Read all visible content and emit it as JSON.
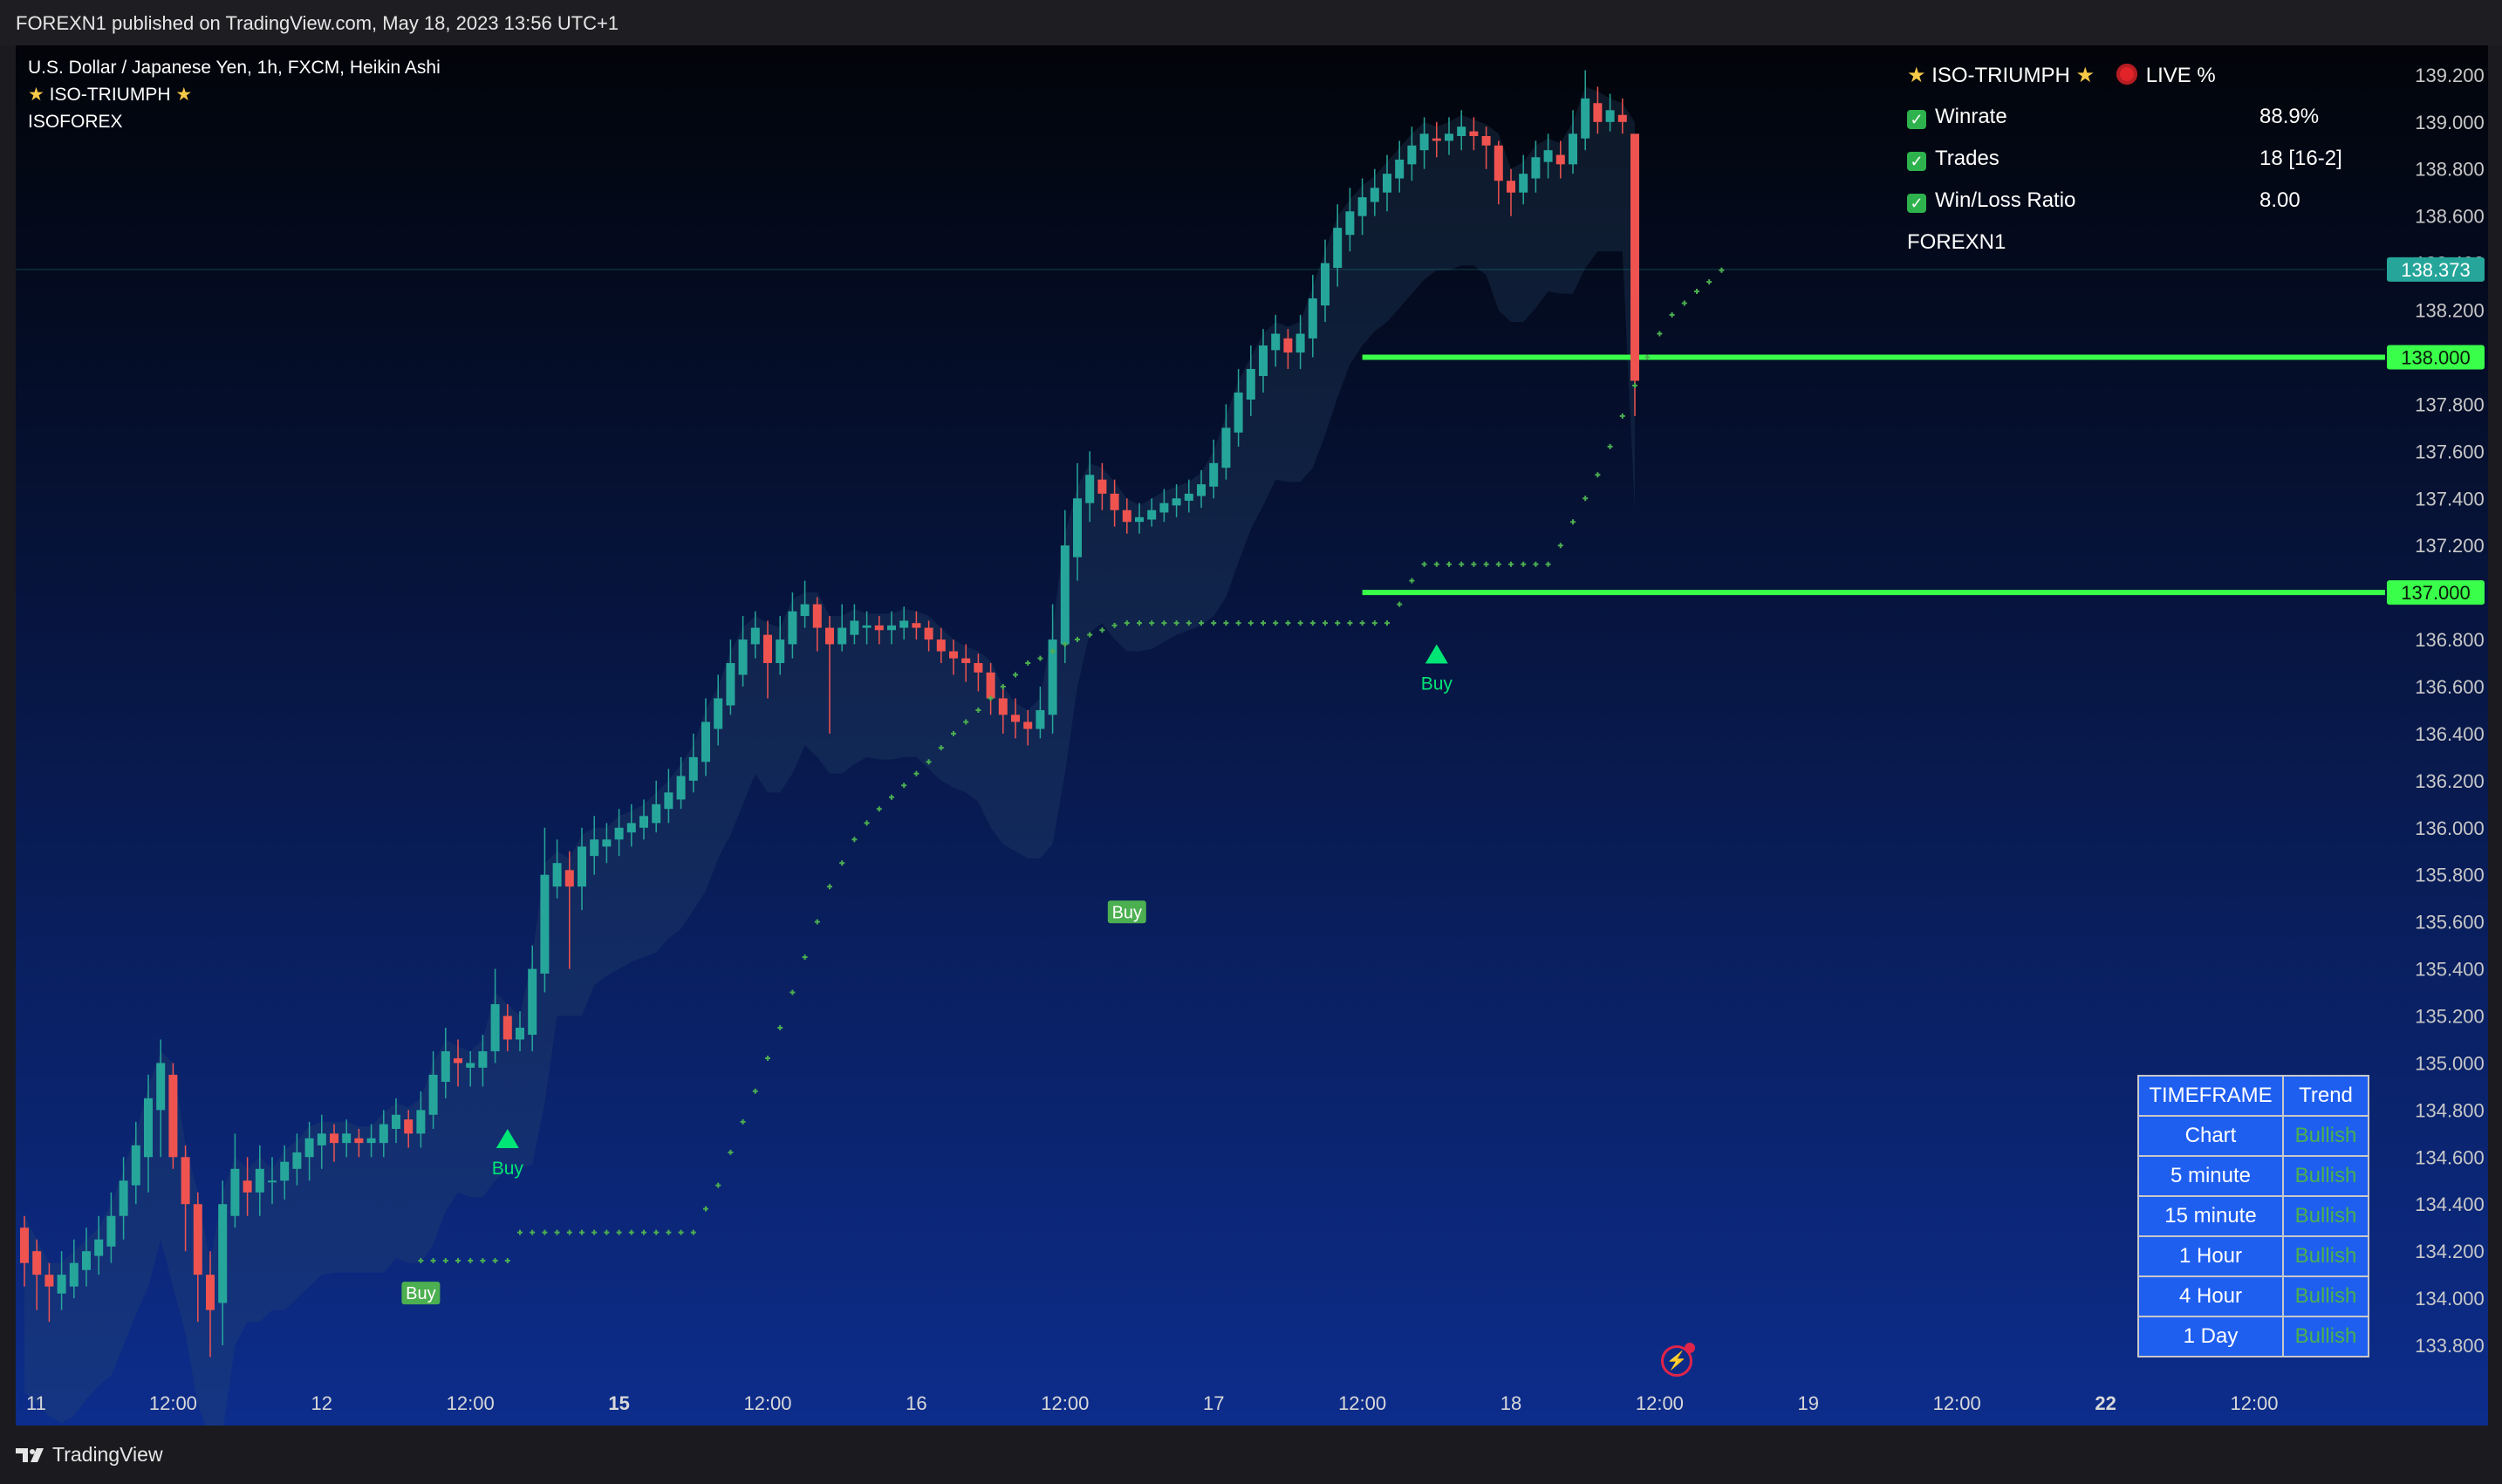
{
  "header": {
    "publisher_line": "FOREXN1 published on TradingView.com, May 18, 2023 13:56 UTC+1"
  },
  "legend": {
    "symbol_line": "U.S. Dollar / Japanese Yen, 1h, FXCM, Heikin Ashi",
    "indicator_line": "ISO-TRIUMPH",
    "author_line": "ISOFOREX"
  },
  "stats_panel": {
    "title": "ISO-TRIUMPH",
    "live_label": "LIVE %",
    "rows": [
      {
        "label": "Winrate",
        "value": "88.9%"
      },
      {
        "label": "Trades",
        "value": "18 [16-2]"
      },
      {
        "label": "Win/Loss Ratio",
        "value": "8.00"
      }
    ],
    "footer_name": "FOREXN1"
  },
  "trend_table": {
    "header": [
      "TIMEFRAME",
      "Trend"
    ],
    "rows": [
      {
        "timeframe": "Chart",
        "trend": "Bullish"
      },
      {
        "timeframe": "5 minute",
        "trend": "Bullish"
      },
      {
        "timeframe": "15 minute",
        "trend": "Bullish"
      },
      {
        "timeframe": "1 Hour",
        "trend": "Bullish"
      },
      {
        "timeframe": "4 Hour",
        "trend": "Bullish"
      },
      {
        "timeframe": "1 Day",
        "trend": "Bullish"
      }
    ]
  },
  "footer": {
    "brand": "TradingView"
  },
  "colors": {
    "bull": "#26a69a",
    "bear": "#ef5350",
    "level": "#39ff4a",
    "stop": "#4caf50",
    "price_tag": "#26a69a",
    "buy_label": "#4caf50",
    "buy_arrow": "#00e676",
    "bg_top": "#020409",
    "bg_bottom": "#0d2d8c"
  },
  "chart_data": {
    "type": "candlestick",
    "symbol": "U.S. Dollar / Japanese Yen, 1h, FXCM, Heikin Ashi",
    "ylim": [
      133.7,
      139.27
    ],
    "y_ticks": [
      "139.200",
      "139.000",
      "138.800",
      "138.600",
      "138.400",
      "138.200",
      "138.000",
      "137.800",
      "137.600",
      "137.400",
      "137.200",
      "137.000",
      "136.800",
      "136.600",
      "136.400",
      "136.200",
      "136.000",
      "135.800",
      "135.600",
      "135.400",
      "135.200",
      "135.000",
      "134.800",
      "134.600",
      "134.400",
      "134.200",
      "134.000",
      "133.800"
    ],
    "x_ticks": [
      {
        "label": "11",
        "bar": 0,
        "bold": false
      },
      {
        "label": "12:00",
        "bar": 12,
        "bold": false
      },
      {
        "label": "12",
        "bar": 24,
        "bold": false
      },
      {
        "label": "12:00",
        "bar": 36,
        "bold": false
      },
      {
        "label": "15",
        "bar": 48,
        "bold": true
      },
      {
        "label": "12:00",
        "bar": 60,
        "bold": false
      },
      {
        "label": "16",
        "bar": 72,
        "bold": false
      },
      {
        "label": "12:00",
        "bar": 84,
        "bold": false
      },
      {
        "label": "17",
        "bar": 96,
        "bold": false
      },
      {
        "label": "12:00",
        "bar": 108,
        "bold": false
      },
      {
        "label": "18",
        "bar": 120,
        "bold": false
      },
      {
        "label": "12:00",
        "bar": 132,
        "bold": false
      },
      {
        "label": "19",
        "bar": 144,
        "bold": false
      },
      {
        "label": "12:00",
        "bar": 156,
        "bold": false
      },
      {
        "label": "22",
        "bar": 168,
        "bold": true
      },
      {
        "label": "12:00",
        "bar": 180,
        "bold": false
      }
    ],
    "price_labels": [
      {
        "value": 138.373,
        "text": "138.373",
        "kind": "last"
      },
      {
        "value": 138.0,
        "text": "138.000",
        "kind": "level"
      },
      {
        "value": 137.0,
        "text": "137.000",
        "kind": "level"
      }
    ],
    "levels": [
      {
        "value": 138.0,
        "from_bar": 108
      },
      {
        "value": 137.0,
        "from_bar": 108
      }
    ],
    "candles": [
      [
        134.3,
        134.15,
        134.35,
        134.05
      ],
      [
        134.2,
        134.1,
        134.25,
        133.95
      ],
      [
        134.1,
        134.05,
        134.15,
        133.9
      ],
      [
        134.02,
        134.1,
        134.2,
        133.95
      ],
      [
        134.05,
        134.15,
        134.25,
        134.0
      ],
      [
        134.12,
        134.2,
        134.3,
        134.05
      ],
      [
        134.18,
        134.25,
        134.35,
        134.1
      ],
      [
        134.22,
        134.35,
        134.45,
        134.15
      ],
      [
        134.35,
        134.5,
        134.6,
        134.25
      ],
      [
        134.48,
        134.65,
        134.75,
        134.4
      ],
      [
        134.6,
        134.85,
        134.95,
        134.45
      ],
      [
        134.8,
        135.0,
        135.1,
        134.6
      ],
      [
        134.95,
        134.6,
        135.0,
        134.55
      ],
      [
        134.6,
        134.4,
        134.65,
        134.2
      ],
      [
        134.4,
        134.1,
        134.45,
        133.9
      ],
      [
        134.1,
        133.95,
        134.2,
        133.75
      ],
      [
        133.98,
        134.4,
        134.5,
        133.8
      ],
      [
        134.35,
        134.55,
        134.7,
        134.3
      ],
      [
        134.5,
        134.45,
        134.6,
        134.35
      ],
      [
        134.45,
        134.55,
        134.65,
        134.35
      ],
      [
        134.5,
        134.5,
        134.6,
        134.4
      ],
      [
        134.5,
        134.58,
        134.65,
        134.42
      ],
      [
        134.55,
        134.62,
        134.7,
        134.48
      ],
      [
        134.6,
        134.68,
        134.75,
        134.5
      ],
      [
        134.65,
        134.7,
        134.78,
        134.55
      ],
      [
        134.7,
        134.66,
        134.74,
        134.58
      ],
      [
        134.66,
        134.7,
        134.76,
        134.6
      ],
      [
        134.68,
        134.66,
        134.72,
        134.6
      ],
      [
        134.66,
        134.68,
        134.74,
        134.6
      ],
      [
        134.66,
        134.74,
        134.8,
        134.6
      ],
      [
        134.72,
        134.78,
        134.85,
        134.66
      ],
      [
        134.76,
        134.7,
        134.8,
        134.64
      ],
      [
        134.7,
        134.8,
        134.88,
        134.64
      ],
      [
        134.78,
        134.95,
        135.05,
        134.72
      ],
      [
        134.92,
        135.05,
        135.15,
        134.85
      ],
      [
        135.02,
        135.0,
        135.1,
        134.9
      ],
      [
        134.98,
        135.0,
        135.05,
        134.9
      ],
      [
        134.98,
        135.05,
        135.12,
        134.9
      ],
      [
        135.05,
        135.25,
        135.4,
        135.0
      ],
      [
        135.2,
        135.1,
        135.25,
        135.05
      ],
      [
        135.1,
        135.15,
        135.22,
        135.05
      ],
      [
        135.12,
        135.4,
        135.5,
        135.05
      ],
      [
        135.38,
        135.8,
        136.0,
        135.3
      ],
      [
        135.75,
        135.85,
        135.95,
        135.7
      ],
      [
        135.82,
        135.75,
        135.9,
        135.4
      ],
      [
        135.75,
        135.92,
        136.0,
        135.65
      ],
      [
        135.88,
        135.95,
        136.05,
        135.8
      ],
      [
        135.92,
        135.95,
        136.02,
        135.85
      ],
      [
        135.95,
        136.0,
        136.08,
        135.88
      ],
      [
        135.98,
        136.02,
        136.1,
        135.92
      ],
      [
        136.0,
        136.05,
        136.12,
        135.95
      ],
      [
        136.02,
        136.1,
        136.2,
        135.98
      ],
      [
        136.08,
        136.15,
        136.25,
        136.02
      ],
      [
        136.12,
        136.22,
        136.3,
        136.08
      ],
      [
        136.2,
        136.3,
        136.4,
        136.15
      ],
      [
        136.28,
        136.45,
        136.55,
        136.22
      ],
      [
        136.42,
        136.55,
        136.65,
        136.35
      ],
      [
        136.52,
        136.7,
        136.8,
        136.48
      ],
      [
        136.65,
        136.8,
        136.9,
        136.6
      ],
      [
        136.78,
        136.85,
        136.92,
        136.72
      ],
      [
        136.82,
        136.7,
        136.88,
        136.55
      ],
      [
        136.7,
        136.8,
        136.9,
        136.65
      ],
      [
        136.78,
        136.92,
        137.0,
        136.72
      ],
      [
        136.9,
        136.95,
        137.05,
        136.85
      ],
      [
        136.95,
        136.85,
        136.98,
        136.75
      ],
      [
        136.85,
        136.78,
        136.9,
        136.4
      ],
      [
        136.78,
        136.85,
        136.95,
        136.75
      ],
      [
        136.82,
        136.88,
        136.95,
        136.78
      ],
      [
        136.85,
        136.86,
        136.92,
        136.78
      ],
      [
        136.86,
        136.84,
        136.9,
        136.78
      ],
      [
        136.84,
        136.86,
        136.92,
        136.78
      ],
      [
        136.85,
        136.88,
        136.94,
        136.8
      ],
      [
        136.87,
        136.85,
        136.92,
        136.8
      ],
      [
        136.85,
        136.8,
        136.88,
        136.75
      ],
      [
        136.8,
        136.75,
        136.85,
        136.7
      ],
      [
        136.75,
        136.72,
        136.8,
        136.65
      ],
      [
        136.72,
        136.7,
        136.78,
        136.62
      ],
      [
        136.7,
        136.66,
        136.74,
        136.58
      ],
      [
        136.66,
        136.55,
        136.7,
        136.48
      ],
      [
        136.55,
        136.48,
        136.6,
        136.4
      ],
      [
        136.48,
        136.45,
        136.55,
        136.38
      ],
      [
        136.45,
        136.42,
        136.5,
        136.35
      ],
      [
        136.42,
        136.5,
        136.6,
        136.38
      ],
      [
        136.48,
        136.8,
        136.95,
        136.4
      ],
      [
        136.78,
        137.2,
        137.35,
        136.7
      ],
      [
        137.15,
        137.4,
        137.55,
        137.05
      ],
      [
        137.38,
        137.5,
        137.6,
        137.3
      ],
      [
        137.48,
        137.42,
        137.55,
        137.35
      ],
      [
        137.42,
        137.35,
        137.48,
        137.28
      ],
      [
        137.35,
        137.3,
        137.4,
        137.25
      ],
      [
        137.3,
        137.32,
        137.38,
        137.25
      ],
      [
        137.31,
        137.35,
        137.4,
        137.28
      ],
      [
        137.34,
        137.38,
        137.44,
        137.3
      ],
      [
        137.37,
        137.4,
        137.46,
        137.32
      ],
      [
        137.39,
        137.42,
        137.48,
        137.34
      ],
      [
        137.41,
        137.46,
        137.52,
        137.36
      ],
      [
        137.45,
        137.55,
        137.65,
        137.4
      ],
      [
        137.53,
        137.7,
        137.8,
        137.48
      ],
      [
        137.68,
        137.85,
        137.95,
        137.62
      ],
      [
        137.82,
        137.95,
        138.05,
        137.75
      ],
      [
        137.92,
        138.05,
        138.12,
        137.85
      ],
      [
        138.03,
        138.1,
        138.18,
        137.96
      ],
      [
        138.08,
        138.02,
        138.12,
        137.95
      ],
      [
        138.02,
        138.1,
        138.18,
        137.95
      ],
      [
        138.08,
        138.25,
        138.35,
        138.0
      ],
      [
        138.22,
        138.4,
        138.5,
        138.15
      ],
      [
        138.38,
        138.55,
        138.65,
        138.3
      ],
      [
        138.52,
        138.62,
        138.72,
        138.45
      ],
      [
        138.6,
        138.68,
        138.76,
        138.52
      ],
      [
        138.66,
        138.72,
        138.8,
        138.6
      ],
      [
        138.7,
        138.78,
        138.86,
        138.62
      ],
      [
        138.76,
        138.84,
        138.92,
        138.7
      ],
      [
        138.82,
        138.9,
        138.98,
        138.75
      ],
      [
        138.88,
        138.95,
        139.02,
        138.8
      ],
      [
        138.93,
        138.92,
        139.0,
        138.85
      ],
      [
        138.92,
        138.95,
        139.02,
        138.86
      ],
      [
        138.94,
        138.98,
        139.05,
        138.88
      ],
      [
        138.96,
        138.94,
        139.02,
        138.88
      ],
      [
        138.94,
        138.9,
        138.98,
        138.8
      ],
      [
        138.9,
        138.75,
        138.92,
        138.65
      ],
      [
        138.75,
        138.7,
        138.8,
        138.6
      ],
      [
        138.7,
        138.78,
        138.86,
        138.65
      ],
      [
        138.76,
        138.85,
        138.92,
        138.7
      ],
      [
        138.83,
        138.88,
        138.95,
        138.76
      ],
      [
        138.86,
        138.82,
        138.92,
        138.76
      ],
      [
        138.82,
        138.95,
        139.05,
        138.78
      ],
      [
        138.93,
        139.1,
        139.22,
        138.88
      ],
      [
        139.08,
        139.0,
        139.15,
        138.95
      ],
      [
        139.0,
        139.05,
        139.12,
        138.96
      ],
      [
        139.03,
        139.0,
        139.1,
        138.95
      ],
      [
        138.95,
        137.9,
        138.3,
        137.75
      ]
    ],
    "heikin_ashi_note": "",
    "buy_signals": [
      {
        "bar": 39,
        "price": 134.72,
        "style": "arrow",
        "label": "Buy"
      },
      {
        "bar": 32,
        "price": 134.1,
        "style": "tag",
        "label": "Buy"
      },
      {
        "bar": 89,
        "price": 135.72,
        "style": "tag",
        "label": "Buy"
      },
      {
        "bar": 114,
        "price": 136.78,
        "style": "arrow",
        "label": "Buy"
      }
    ],
    "trailing_stop": [
      [
        32,
        134.16
      ],
      [
        33,
        134.16
      ],
      [
        34,
        134.16
      ],
      [
        35,
        134.16
      ],
      [
        36,
        134.16
      ],
      [
        37,
        134.16
      ],
      [
        38,
        134.16
      ],
      [
        39,
        134.16
      ],
      [
        40,
        134.28
      ],
      [
        41,
        134.28
      ],
      [
        42,
        134.28
      ],
      [
        43,
        134.28
      ],
      [
        44,
        134.28
      ],
      [
        45,
        134.28
      ],
      [
        46,
        134.28
      ],
      [
        47,
        134.28
      ],
      [
        48,
        134.28
      ],
      [
        49,
        134.28
      ],
      [
        50,
        134.28
      ],
      [
        51,
        134.28
      ],
      [
        52,
        134.28
      ],
      [
        53,
        134.28
      ],
      [
        54,
        134.28
      ],
      [
        55,
        134.38
      ],
      [
        56,
        134.48
      ],
      [
        57,
        134.62
      ],
      [
        58,
        134.75
      ],
      [
        59,
        134.88
      ],
      [
        60,
        135.02
      ],
      [
        61,
        135.15
      ],
      [
        62,
        135.3
      ],
      [
        63,
        135.45
      ],
      [
        64,
        135.6
      ],
      [
        65,
        135.75
      ],
      [
        66,
        135.85
      ],
      [
        67,
        135.95
      ],
      [
        68,
        136.02
      ],
      [
        69,
        136.08
      ],
      [
        70,
        136.13
      ],
      [
        71,
        136.18
      ],
      [
        72,
        136.23
      ],
      [
        73,
        136.28
      ],
      [
        74,
        136.34
      ],
      [
        75,
        136.4
      ],
      [
        76,
        136.45
      ],
      [
        77,
        136.5
      ],
      [
        78,
        136.55
      ],
      [
        79,
        136.6
      ],
      [
        80,
        136.65
      ],
      [
        81,
        136.7
      ],
      [
        82,
        136.72
      ],
      [
        83,
        136.75
      ],
      [
        84,
        136.78
      ],
      [
        85,
        136.8
      ],
      [
        86,
        136.82
      ],
      [
        87,
        136.84
      ],
      [
        88,
        136.86
      ],
      [
        89,
        136.87
      ],
      [
        90,
        136.87
      ],
      [
        91,
        136.87
      ],
      [
        92,
        136.87
      ],
      [
        93,
        136.87
      ],
      [
        94,
        136.87
      ],
      [
        95,
        136.87
      ],
      [
        96,
        136.87
      ],
      [
        97,
        136.87
      ],
      [
        98,
        136.87
      ],
      [
        99,
        136.87
      ],
      [
        100,
        136.87
      ],
      [
        101,
        136.87
      ],
      [
        102,
        136.87
      ],
      [
        103,
        136.87
      ],
      [
        104,
        136.87
      ],
      [
        105,
        136.87
      ],
      [
        106,
        136.87
      ],
      [
        107,
        136.87
      ],
      [
        108,
        136.87
      ],
      [
        109,
        136.87
      ],
      [
        110,
        136.87
      ],
      [
        111,
        136.95
      ],
      [
        112,
        137.05
      ],
      [
        113,
        137.12
      ],
      [
        114,
        137.12
      ],
      [
        115,
        137.12
      ],
      [
        116,
        137.12
      ],
      [
        117,
        137.12
      ],
      [
        118,
        137.12
      ],
      [
        119,
        137.12
      ],
      [
        120,
        137.12
      ],
      [
        121,
        137.12
      ],
      [
        122,
        137.12
      ],
      [
        123,
        137.12
      ],
      [
        124,
        137.2
      ],
      [
        125,
        137.3
      ],
      [
        126,
        137.4
      ],
      [
        127,
        137.5
      ],
      [
        128,
        137.62
      ],
      [
        129,
        137.75
      ],
      [
        130,
        137.88
      ],
      [
        131,
        138.0
      ],
      [
        132,
        138.1
      ],
      [
        133,
        138.18
      ],
      [
        134,
        138.23
      ],
      [
        135,
        138.28
      ],
      [
        136,
        138.32
      ],
      [
        137,
        138.37
      ]
    ],
    "cloud_note": ""
  }
}
